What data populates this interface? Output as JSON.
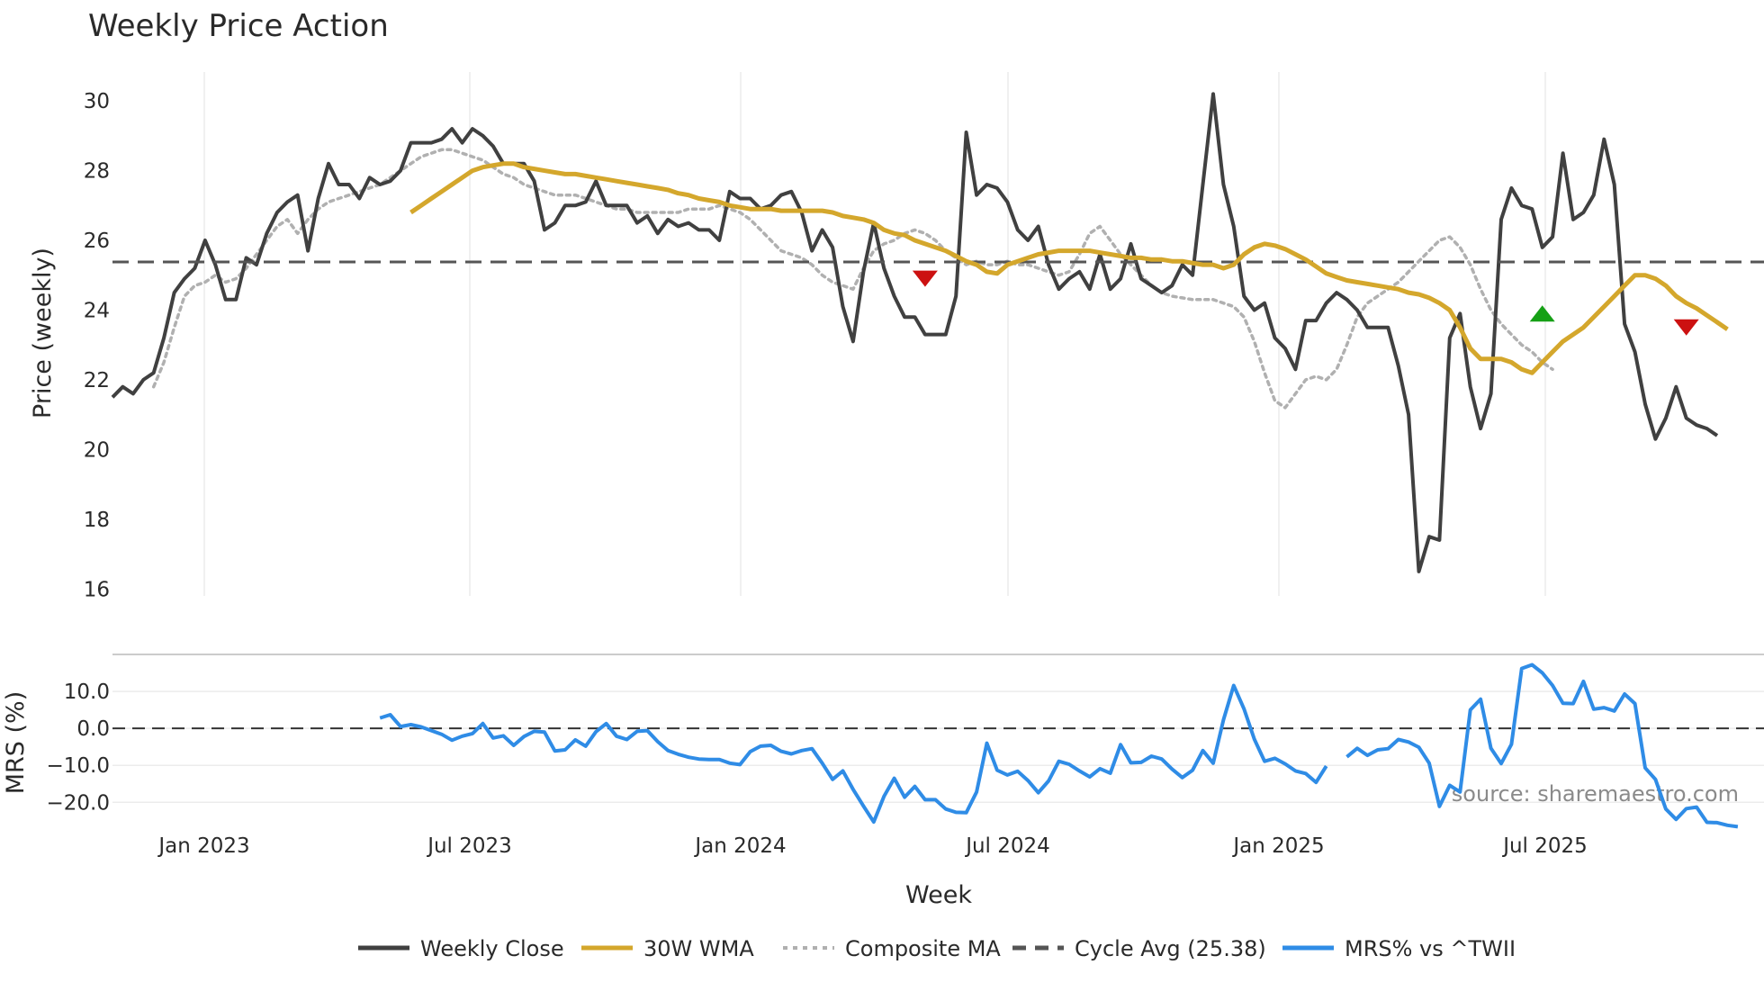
{
  "chart_data": {
    "type": "line",
    "title": "Weekly Price Action",
    "xlabel": "Week",
    "x_ticks": [
      "Jan 2023",
      "Jul 2023",
      "Jan 2024",
      "Jul 2024",
      "Jan 2025",
      "Jul 2025"
    ],
    "main": {
      "ylabel": "Price (weekly)",
      "ylim": [
        15.8,
        30.7
      ],
      "y_ticks": [
        "16",
        "18",
        "20",
        "22",
        "24",
        "26",
        "28",
        "30"
      ],
      "grid": "x",
      "series": [
        {
          "name": "Weekly Close",
          "color": "#404040",
          "style": "solid",
          "values": [
            21.5,
            21.8,
            21.6,
            22.0,
            22.2,
            23.2,
            24.5,
            24.9,
            25.2,
            26.0,
            25.3,
            24.3,
            24.3,
            25.5,
            25.3,
            26.2,
            26.8,
            27.1,
            27.3,
            25.7,
            27.2,
            28.2,
            27.6,
            27.6,
            27.2,
            27.8,
            27.6,
            27.7,
            28.0,
            28.8,
            28.8,
            28.8,
            28.9,
            29.2,
            28.8,
            29.2,
            29.0,
            28.7,
            28.2,
            28.2,
            28.2,
            27.7,
            26.3,
            26.5,
            27.0,
            27.0,
            27.1,
            27.7,
            27.0,
            27.0,
            27.0,
            26.5,
            26.7,
            26.2,
            26.6,
            26.4,
            26.5,
            26.3,
            26.3,
            26.0,
            27.4,
            27.2,
            27.2,
            26.9,
            27.0,
            27.3,
            27.4,
            26.8,
            25.7,
            26.3,
            25.8,
            24.1,
            23.1,
            25.1,
            26.5,
            25.2,
            24.4,
            23.8,
            23.8,
            23.3,
            23.3,
            23.3,
            24.4,
            29.1,
            27.3,
            27.6,
            27.5,
            27.1,
            26.3,
            26.0,
            26.4,
            25.3,
            24.6,
            24.9,
            25.1,
            24.6,
            25.6,
            24.6,
            24.9,
            25.9,
            24.9,
            24.7,
            24.5,
            24.7,
            25.3,
            25.0,
            27.6,
            30.2,
            27.6,
            26.4,
            24.4,
            24.0,
            24.2,
            23.2,
            22.9,
            22.3,
            23.7,
            23.7,
            24.2,
            24.5,
            24.3,
            24.0,
            23.5,
            23.5,
            23.5,
            22.4,
            21.0,
            16.5,
            17.5,
            17.4,
            23.2,
            23.9,
            21.8,
            20.6,
            21.6,
            26.6,
            27.5,
            27.0,
            26.9,
            25.8,
            26.1,
            28.5,
            26.6,
            26.8,
            27.3,
            28.9,
            27.6,
            23.6,
            22.8,
            21.3,
            20.3,
            20.9,
            21.8,
            20.9,
            20.7,
            20.6,
            20.4
          ]
        },
        {
          "name": "30W WMA",
          "color": "#D4A72C",
          "style": "solid",
          "start_index": 29,
          "values": [
            26.8,
            27.0,
            27.2,
            27.4,
            27.6,
            27.8,
            28.0,
            28.1,
            28.15,
            28.2,
            28.2,
            28.1,
            28.05,
            28.0,
            27.95,
            27.9,
            27.9,
            27.85,
            27.8,
            27.75,
            27.7,
            27.65,
            27.6,
            27.55,
            27.5,
            27.45,
            27.35,
            27.3,
            27.2,
            27.15,
            27.1,
            27.0,
            26.95,
            26.9,
            26.9,
            26.9,
            26.85,
            26.85,
            26.85,
            26.85,
            26.85,
            26.8,
            26.7,
            26.65,
            26.6,
            26.5,
            26.3,
            26.2,
            26.15,
            26.0,
            25.9,
            25.8,
            25.7,
            25.55,
            25.4,
            25.3,
            25.1,
            25.05,
            25.3,
            25.4,
            25.5,
            25.6,
            25.65,
            25.7,
            25.7,
            25.7,
            25.7,
            25.65,
            25.6,
            25.55,
            25.5,
            25.5,
            25.45,
            25.45,
            25.4,
            25.4,
            25.35,
            25.3,
            25.3,
            25.2,
            25.3,
            25.6,
            25.8,
            25.9,
            25.85,
            25.75,
            25.6,
            25.45,
            25.25,
            25.05,
            24.95,
            24.85,
            24.8,
            24.75,
            24.7,
            24.65,
            24.6,
            24.5,
            24.45,
            24.35,
            24.2,
            24.0,
            23.5,
            22.9,
            22.6,
            22.6,
            22.6,
            22.5,
            22.3,
            22.2,
            22.5,
            22.8,
            23.1,
            23.3,
            23.5,
            23.8,
            24.1,
            24.4,
            24.7,
            25.0,
            25.0,
            24.9,
            24.7,
            24.4,
            24.2,
            24.05,
            23.85,
            23.65,
            23.45
          ]
        },
        {
          "name": "Composite MA",
          "color": "#b0b0b0",
          "style": "dotted",
          "start_index": 4,
          "values": [
            21.8,
            22.5,
            23.5,
            24.4,
            24.7,
            24.8,
            25.0,
            24.8,
            24.9,
            25.2,
            25.6,
            26.0,
            26.4,
            26.6,
            26.2,
            26.6,
            26.9,
            27.1,
            27.2,
            27.3,
            27.4,
            27.5,
            27.6,
            27.8,
            28.0,
            28.2,
            28.4,
            28.5,
            28.6,
            28.6,
            28.5,
            28.4,
            28.3,
            28.1,
            27.9,
            27.8,
            27.6,
            27.5,
            27.4,
            27.3,
            27.3,
            27.3,
            27.2,
            27.1,
            27.0,
            26.9,
            26.9,
            26.8,
            26.8,
            26.8,
            26.8,
            26.8,
            26.9,
            26.9,
            26.9,
            27.0,
            26.9,
            26.8,
            26.6,
            26.3,
            26.0,
            25.7,
            25.6,
            25.5,
            25.3,
            25.0,
            24.8,
            24.7,
            24.6,
            25.2,
            25.7,
            25.9,
            26.0,
            26.2,
            26.3,
            26.2,
            26.0,
            25.7,
            25.5,
            25.3,
            25.4,
            25.3,
            25.3,
            25.4,
            25.3,
            25.3,
            25.2,
            25.1,
            25.0,
            25.1,
            25.6,
            26.2,
            26.4,
            26.0,
            25.6,
            25.3,
            25.0,
            24.7,
            24.5,
            24.4,
            24.35,
            24.3,
            24.3,
            24.3,
            24.2,
            24.1,
            23.8,
            23.1,
            22.2,
            21.4,
            21.2,
            21.6,
            22.0,
            22.1,
            22.0,
            22.3,
            23.0,
            23.8,
            24.2,
            24.4,
            24.6,
            24.8,
            25.1,
            25.4,
            25.7,
            26.0,
            26.1,
            25.8,
            25.3,
            24.6,
            24.0,
            23.6,
            23.3,
            23.0,
            22.8,
            22.5,
            22.3
          ]
        },
        {
          "name": "Cycle Avg (25.38)",
          "color": "#555555",
          "style": "dashed",
          "constant": 25.38
        }
      ],
      "markers": [
        {
          "type": "sell",
          "color": "#cc1111",
          "index": 79,
          "value": 24.9
        },
        {
          "type": "buy",
          "color": "#16a016",
          "index": 139,
          "value": 23.9
        },
        {
          "type": "sell",
          "color": "#cc1111",
          "index": 153,
          "value": 23.5
        }
      ]
    },
    "mrs": {
      "ylabel": "MRS (%)",
      "ylim": [
        -26.5,
        20
      ],
      "y_ticks": [
        "10.0",
        "0.0",
        "−10.0",
        "−20.0"
      ],
      "series": [
        {
          "name": "MRS% vs ^TWII",
          "color": "#2f8ce6",
          "style": "solid",
          "start_index": 26,
          "values": [
            2.8,
            3.7,
            0.5,
            1.0,
            0.4,
            -0.6,
            -1.6,
            -3.2,
            -2.1,
            -1.4,
            1.3,
            -2.6,
            -2.0,
            -4.6,
            -2.2,
            -0.8,
            -1.0,
            -6.1,
            -5.8,
            -3.1,
            -4.8,
            -0.9,
            1.3,
            -2.1,
            -3.0,
            -0.8,
            -0.6,
            -3.6,
            -6.0,
            -7.0,
            -7.8,
            -8.3,
            -8.4,
            -8.4,
            -9.4,
            -9.8,
            -6.3,
            -4.8,
            -4.6,
            -6.2,
            -6.9,
            -6.0,
            -5.5,
            -9.4,
            -13.8,
            -11.5,
            -16.5,
            -21.0,
            -25.3,
            -18.4,
            -13.5,
            -18.6,
            -15.7,
            -19.3,
            -19.3,
            -21.8,
            -22.7,
            -22.8,
            -17.2,
            -4.0,
            -11.3,
            -12.6,
            -11.6,
            -14.1,
            -17.4,
            -14.2,
            -8.9,
            -9.7,
            -11.5,
            -13.1,
            -10.9,
            -12.1,
            -4.4,
            -9.3,
            -9.2,
            -7.5,
            -8.3,
            -11.0,
            -13.3,
            -11.3,
            -6.0,
            -9.4,
            2.3,
            11.6,
            5.3,
            -2.9,
            -8.9,
            -8.1,
            -9.6,
            -11.5,
            -12.2,
            -14.6,
            -10.2,
            null,
            -7.7,
            -5.4,
            -7.3,
            -5.8,
            -5.5,
            -3.0,
            -3.7,
            -5.1,
            -9.4,
            -21.1,
            -15.4,
            -17.2,
            5.0,
            7.9,
            -5.4,
            -9.5,
            -4.3,
            16.2,
            17.2,
            15.0,
            11.6,
            6.8,
            6.7,
            12.7,
            5.2,
            5.6,
            4.7,
            9.3,
            6.7,
            -10.7,
            -13.8,
            -21.8,
            -24.6,
            -21.7,
            -21.3,
            -25.4,
            -25.5,
            -26.2,
            -26.6
          ]
        },
        {
          "name": "zero-line",
          "color": "#333333",
          "style": "dashed",
          "constant": 0
        }
      ]
    },
    "legend": {
      "placement": "bottom-center",
      "entries": [
        {
          "label": "Weekly Close",
          "color": "#404040",
          "style": "solid"
        },
        {
          "label": "30W WMA",
          "color": "#D4A72C",
          "style": "solid"
        },
        {
          "label": "Composite MA",
          "color": "#b0b0b0",
          "style": "dotted"
        },
        {
          "label": "Cycle Avg (25.38)",
          "color": "#555555",
          "style": "dashed"
        },
        {
          "label": "MRS% vs ^TWII",
          "color": "#2f8ce6",
          "style": "solid"
        }
      ]
    },
    "source_note": "source: sharemaestro.com"
  }
}
